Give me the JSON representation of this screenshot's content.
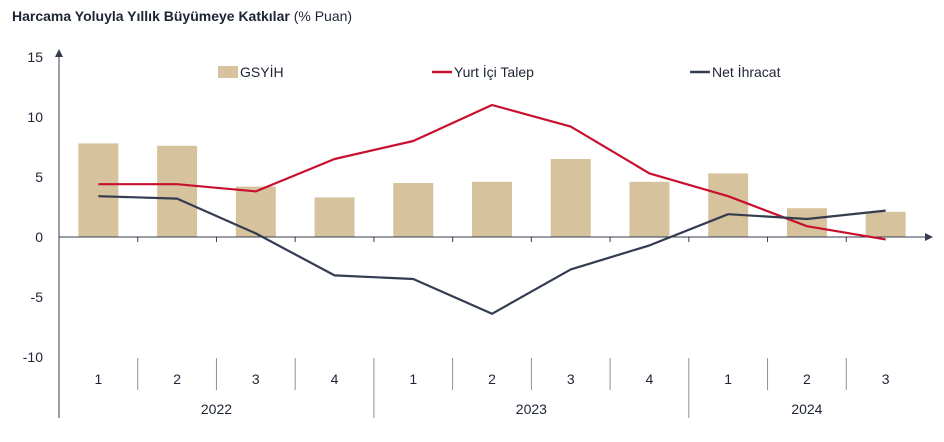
{
  "chart_data": {
    "type": "bar",
    "title": "Harcama Yoluyla Yıllık Büyümeye Katkılar",
    "title_unit": "(% Puan)",
    "xlabel": "",
    "ylabel": "",
    "ylim": [
      -10,
      15
    ],
    "yticks": [
      15,
      10,
      5,
      0,
      -5,
      -10
    ],
    "categories": [
      "1",
      "2",
      "3",
      "4",
      "1",
      "2",
      "3",
      "4",
      "1",
      "2",
      "3"
    ],
    "year_groups": [
      {
        "label": "2022",
        "count": 4
      },
      {
        "label": "2023",
        "count": 4
      },
      {
        "label": "2024",
        "count": 3
      }
    ],
    "legend_placement": "top",
    "series": [
      {
        "name": "GSYİH",
        "kind": "bar",
        "color": "#d6c39e",
        "values": [
          7.8,
          7.6,
          4.2,
          3.3,
          4.5,
          4.6,
          6.5,
          4.6,
          5.3,
          2.4,
          2.1
        ]
      },
      {
        "name": "Yurt İçi Talep",
        "kind": "line",
        "color": "#c8102e",
        "values": [
          4.4,
          4.4,
          3.8,
          6.5,
          8.0,
          11.0,
          9.2,
          5.3,
          3.4,
          0.9,
          -0.2
        ]
      },
      {
        "name": "Net İhracat",
        "kind": "line",
        "color": "#333d4f",
        "values": [
          3.4,
          3.2,
          0.3,
          -3.2,
          -3.5,
          -6.4,
          -2.7,
          -0.7,
          1.9,
          1.5,
          2.2
        ]
      }
    ]
  }
}
